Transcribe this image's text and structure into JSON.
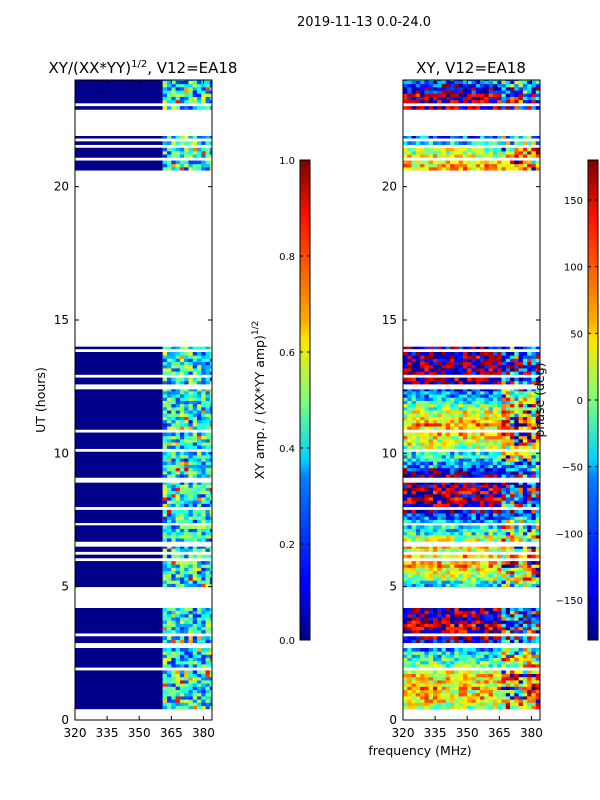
{
  "chart_data": {
    "type": "heatmap",
    "suptitle": "2019-11-13 0.0-24.0",
    "xlabel": "frequency (MHz)",
    "panels": [
      {
        "title": "XY/(XX*YY)",
        "title_exponent": "1/2",
        "title_suffix": ", V12=EA18",
        "ylabel": "UT (hours)",
        "xlim": [
          320,
          384
        ],
        "ylim": [
          0,
          24
        ],
        "xticks": [
          "320",
          "335",
          "350",
          "365",
          "380"
        ],
        "yticks": [
          "0",
          "5",
          "10",
          "15",
          "20"
        ],
        "quantity": "normalized XY amplitude",
        "colorbar": {
          "label": "XY amp. / (XX*YY amp)",
          "label_exponent": "1/2",
          "range": [
            0.0,
            1.0
          ],
          "ticks": [
            "0.0",
            "0.2",
            "0.4",
            "0.6",
            "0.8",
            "1.0"
          ],
          "colormap": "jet"
        }
      },
      {
        "title": "XY, V12=EA18",
        "ylabel": "",
        "xlim": [
          320,
          384
        ],
        "ylim": [
          0,
          24
        ],
        "xticks": [
          "320",
          "335",
          "350",
          "365",
          "380"
        ],
        "yticks": [
          "0",
          "5",
          "10",
          "15",
          "20"
        ],
        "quantity": "XY phase",
        "colorbar": {
          "label": "phase (deg)",
          "range": [
            -180,
            180
          ],
          "ticks": [
            "−150",
            "−100",
            "−50",
            "0",
            "50",
            "100",
            "150"
          ],
          "colormap": "jet"
        }
      }
    ],
    "data_blocks_hours": [
      [
        0.3,
        2.7
      ],
      [
        2.9,
        4.2
      ],
      [
        5.0,
        6.5
      ],
      [
        6.7,
        7.3
      ],
      [
        7.4,
        8.9
      ],
      [
        9.1,
        12.4
      ],
      [
        12.6,
        14.0
      ],
      [
        20.5,
        21.9
      ],
      [
        22.9,
        24.0
      ]
    ],
    "rfi_band_mhz": [
      361,
      383
    ]
  }
}
